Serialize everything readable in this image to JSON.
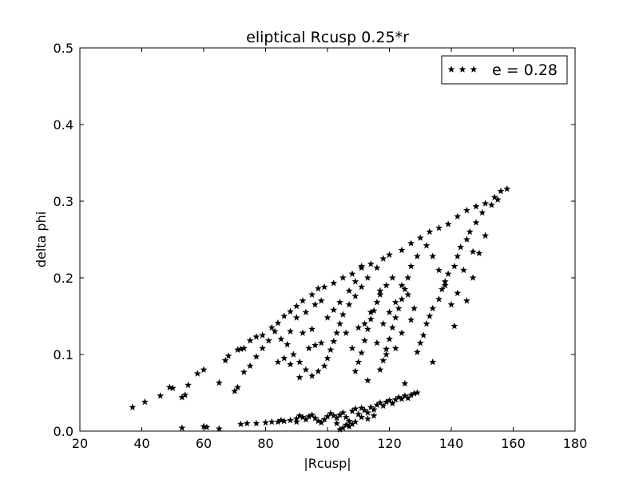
{
  "chart_data": {
    "type": "scatter",
    "title": "eliptical Rcusp 0.25*r",
    "xlabel": "|Rcusp|",
    "ylabel": "delta phi",
    "xlim": [
      20,
      180
    ],
    "ylim": [
      0,
      0.5
    ],
    "xticks": [
      20,
      40,
      60,
      80,
      100,
      120,
      140,
      160,
      180
    ],
    "yticks": [
      0.0,
      0.1,
      0.2,
      0.3,
      0.4,
      0.5
    ],
    "xtick_labels": [
      "20",
      "40",
      "60",
      "80",
      "100",
      "120",
      "140",
      "160",
      "180"
    ],
    "ytick_labels": [
      "0.0",
      "0.1",
      "0.2",
      "0.3",
      "0.4",
      "0.5"
    ],
    "grid": false,
    "legend": {
      "position": "top-right",
      "entries": [
        "e = 0.28"
      ]
    },
    "marker": "star",
    "color": "#000000",
    "series": [
      {
        "name": "e = 0.28",
        "points": [
          [
            37,
            0.031
          ],
          [
            41,
            0.038
          ],
          [
            46,
            0.046
          ],
          [
            49,
            0.057
          ],
          [
            50,
            0.056
          ],
          [
            53,
            0.044
          ],
          [
            54,
            0.047
          ],
          [
            55,
            0.06
          ],
          [
            58,
            0.075
          ],
          [
            60,
            0.08
          ],
          [
            65,
            0.063
          ],
          [
            67,
            0.092
          ],
          [
            68,
            0.098
          ],
          [
            71,
            0.106
          ],
          [
            72,
            0.107
          ],
          [
            73,
            0.108
          ],
          [
            75,
            0.118
          ],
          [
            77,
            0.123
          ],
          [
            79,
            0.125
          ],
          [
            82,
            0.135
          ],
          [
            84,
            0.141
          ],
          [
            86,
            0.15
          ],
          [
            88,
            0.156
          ],
          [
            90,
            0.163
          ],
          [
            92,
            0.17
          ],
          [
            95,
            0.178
          ],
          [
            97,
            0.186
          ],
          [
            99,
            0.188
          ],
          [
            102,
            0.193
          ],
          [
            105,
            0.2
          ],
          [
            108,
            0.205
          ],
          [
            111,
            0.213
          ],
          [
            114,
            0.218
          ],
          [
            118,
            0.225
          ],
          [
            120,
            0.23
          ],
          [
            124,
            0.236
          ],
          [
            127,
            0.245
          ],
          [
            130,
            0.252
          ],
          [
            133,
            0.26
          ],
          [
            136,
            0.265
          ],
          [
            139,
            0.27
          ],
          [
            142,
            0.28
          ],
          [
            145,
            0.288
          ],
          [
            148,
            0.293
          ],
          [
            151,
            0.297
          ],
          [
            154,
            0.305
          ],
          [
            156,
            0.313
          ],
          [
            158,
            0.316
          ],
          [
            155,
            0.302
          ],
          [
            153,
            0.295
          ],
          [
            150,
            0.285
          ],
          [
            148,
            0.272
          ],
          [
            146,
            0.26
          ],
          [
            145,
            0.25
          ],
          [
            143,
            0.24
          ],
          [
            142,
            0.228
          ],
          [
            141,
            0.215
          ],
          [
            139,
            0.205
          ],
          [
            138,
            0.195
          ],
          [
            137,
            0.185
          ],
          [
            136,
            0.172
          ],
          [
            134,
            0.16
          ],
          [
            133,
            0.15
          ],
          [
            132,
            0.14
          ],
          [
            131,
            0.125
          ],
          [
            130,
            0.115
          ],
          [
            129,
            0.103
          ],
          [
            134,
            0.09
          ],
          [
            141,
            0.137
          ],
          [
            145,
            0.17
          ],
          [
            147,
            0.2
          ],
          [
            149,
            0.232
          ],
          [
            151,
            0.255
          ],
          [
            147,
            0.234
          ],
          [
            144,
            0.21
          ],
          [
            142,
            0.18
          ],
          [
            140,
            0.165
          ],
          [
            138,
            0.19
          ],
          [
            136,
            0.21
          ],
          [
            134,
            0.228
          ],
          [
            132,
            0.242
          ],
          [
            129,
            0.228
          ],
          [
            127,
            0.215
          ],
          [
            126,
            0.2
          ],
          [
            125,
            0.185
          ],
          [
            124,
            0.172
          ],
          [
            123,
            0.16
          ],
          [
            122,
            0.148
          ],
          [
            121,
            0.135
          ],
          [
            120,
            0.12
          ],
          [
            119,
            0.107
          ],
          [
            118,
            0.092
          ],
          [
            117,
            0.08
          ],
          [
            125,
            0.062
          ],
          [
            121,
            0.2
          ],
          [
            119,
            0.19
          ],
          [
            117,
            0.178
          ],
          [
            116,
            0.168
          ],
          [
            115,
            0.157
          ],
          [
            114,
            0.146
          ],
          [
            113,
            0.133
          ],
          [
            112,
            0.118
          ],
          [
            111,
            0.102
          ],
          [
            110,
            0.09
          ],
          [
            109,
            0.078
          ],
          [
            113,
            0.066
          ],
          [
            116,
            0.213
          ],
          [
            113,
            0.2
          ],
          [
            111,
            0.188
          ],
          [
            109,
            0.176
          ],
          [
            107,
            0.165
          ],
          [
            105,
            0.152
          ],
          [
            104,
            0.14
          ],
          [
            103,
            0.128
          ],
          [
            102,
            0.117
          ],
          [
            101,
            0.106
          ],
          [
            100,
            0.095
          ],
          [
            99,
            0.085
          ],
          [
            97,
            0.078
          ],
          [
            95,
            0.072
          ],
          [
            93,
            0.08
          ],
          [
            91,
            0.09
          ],
          [
            89,
            0.1
          ],
          [
            87,
            0.113
          ],
          [
            85,
            0.12
          ],
          [
            83,
            0.13
          ],
          [
            81,
            0.118
          ],
          [
            79,
            0.108
          ],
          [
            77,
            0.097
          ],
          [
            75,
            0.085
          ],
          [
            73,
            0.077
          ],
          [
            71,
            0.057
          ],
          [
            70,
            0.052
          ],
          [
            91,
            0.07
          ],
          [
            94,
            0.108
          ],
          [
            96,
            0.112
          ],
          [
            98,
            0.115
          ],
          [
            100,
            0.148
          ],
          [
            102,
            0.158
          ],
          [
            104,
            0.168
          ],
          [
            96,
            0.165
          ],
          [
            93,
            0.155
          ],
          [
            90,
            0.148
          ],
          [
            88,
            0.13
          ],
          [
            86,
            0.095
          ],
          [
            84,
            0.09
          ],
          [
            88,
            0.087
          ],
          [
            92,
            0.128
          ],
          [
            95,
            0.133
          ],
          [
            98,
            0.17
          ],
          [
            107,
            0.183
          ],
          [
            109,
            0.195
          ],
          [
            111,
            0.215
          ],
          [
            106,
            0.128
          ],
          [
            108,
            0.108
          ],
          [
            110,
            0.135
          ],
          [
            112,
            0.14
          ],
          [
            114,
            0.155
          ],
          [
            116,
            0.115
          ],
          [
            118,
            0.14
          ],
          [
            120,
            0.155
          ],
          [
            122,
            0.168
          ],
          [
            124,
            0.19
          ],
          [
            126,
            0.178
          ],
          [
            128,
            0.16
          ],
          [
            127,
            0.145
          ],
          [
            124,
            0.128
          ],
          [
            122,
            0.108
          ],
          [
            119,
            0.1
          ],
          [
            117,
            0.183
          ],
          [
            53,
            0.004
          ],
          [
            60,
            0.006
          ],
          [
            61,
            0.005
          ],
          [
            65,
            0.003
          ],
          [
            72,
            0.009
          ],
          [
            74,
            0.01
          ],
          [
            77,
            0.01
          ],
          [
            80,
            0.011
          ],
          [
            82,
            0.012
          ],
          [
            85,
            0.014
          ],
          [
            88,
            0.014
          ],
          [
            90,
            0.016
          ],
          [
            91,
            0.02
          ],
          [
            92,
            0.018
          ],
          [
            93,
            0.015
          ],
          [
            94,
            0.019
          ],
          [
            95,
            0.021
          ],
          [
            96,
            0.017
          ],
          [
            97,
            0.013
          ],
          [
            98,
            0.011
          ],
          [
            99,
            0.015
          ],
          [
            100,
            0.019
          ],
          [
            101,
            0.023
          ],
          [
            102,
            0.02
          ],
          [
            103,
            0.017
          ],
          [
            104,
            0.021
          ],
          [
            105,
            0.024
          ],
          [
            106,
            0.018
          ],
          [
            107,
            0.013
          ],
          [
            106,
            0.008
          ],
          [
            105,
            0.004
          ],
          [
            104,
            0.002
          ],
          [
            103,
            0.01
          ],
          [
            108,
            0.026
          ],
          [
            109,
            0.029
          ],
          [
            110,
            0.022
          ],
          [
            111,
            0.03
          ],
          [
            112,
            0.027
          ],
          [
            113,
            0.024
          ],
          [
            114,
            0.031
          ],
          [
            115,
            0.028
          ],
          [
            116,
            0.034
          ],
          [
            117,
            0.037
          ],
          [
            118,
            0.033
          ],
          [
            119,
            0.038
          ],
          [
            120,
            0.04
          ],
          [
            121,
            0.036
          ],
          [
            122,
            0.041
          ],
          [
            123,
            0.044
          ],
          [
            124,
            0.042
          ],
          [
            125,
            0.046
          ],
          [
            126,
            0.043
          ],
          [
            127,
            0.047
          ],
          [
            128,
            0.049
          ],
          [
            129,
            0.05
          ],
          [
            115,
            0.02
          ],
          [
            113,
            0.016
          ],
          [
            111,
            0.018
          ],
          [
            109,
            0.012
          ],
          [
            108,
            0.009
          ],
          [
            107,
            0.006
          ],
          [
            90,
            0.012
          ],
          [
            86,
            0.013
          ],
          [
            84,
            0.012
          ]
        ]
      }
    ]
  }
}
